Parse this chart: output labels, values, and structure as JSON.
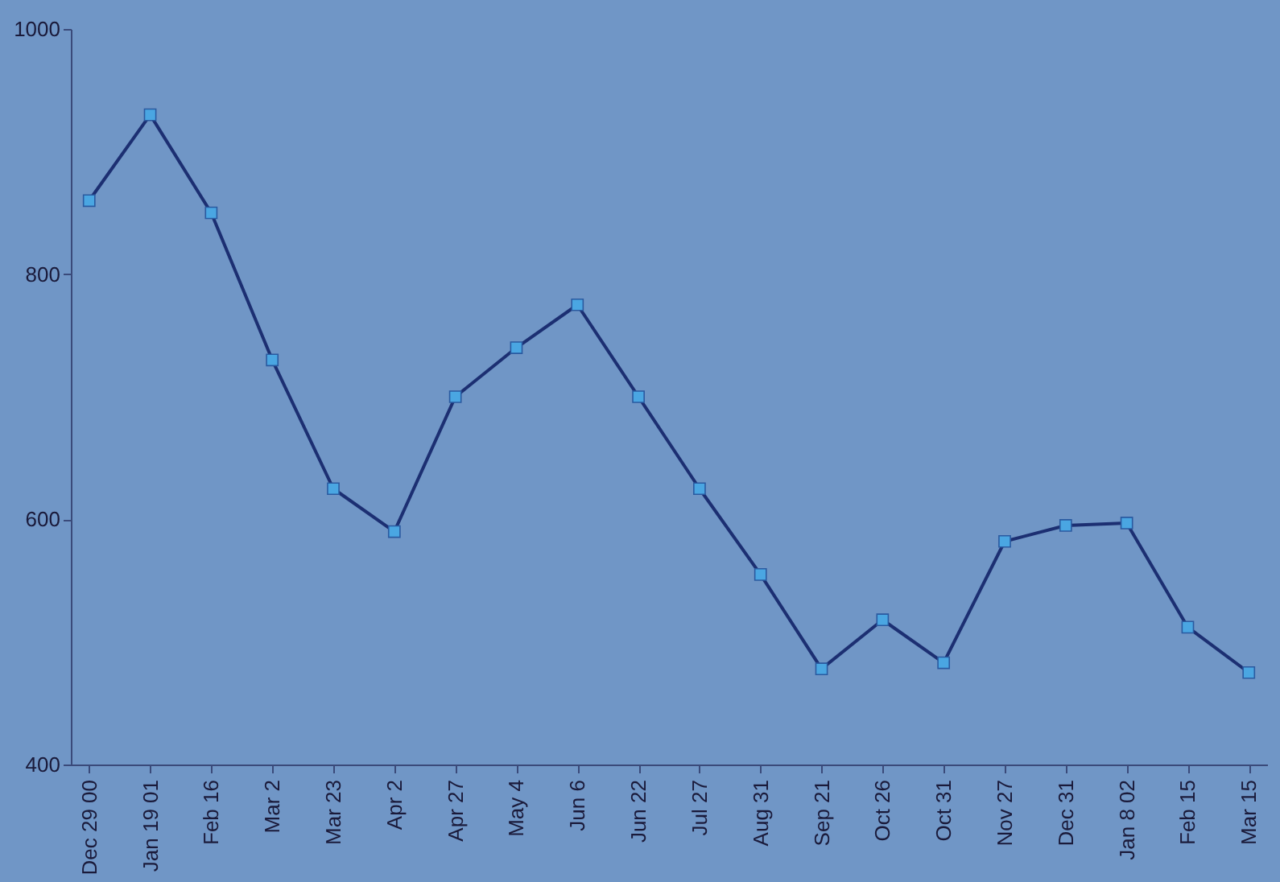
{
  "chart_data": {
    "type": "line",
    "categories": [
      "Dec 29 00",
      "Jan 19 01",
      "Feb 16",
      "Mar 2",
      "Mar 23",
      "Apr 2",
      "Apr 27",
      "May 4",
      "Jun 6",
      "Jun 22",
      "Jul 27",
      "Aug 31",
      "Sep 21",
      "Oct 26",
      "Oct 31",
      "Nov 27",
      "Dec 31",
      "Jan 8 02",
      "Feb 15",
      "Mar 15"
    ],
    "series": [
      {
        "color": "#1c2f72",
        "values": [
          860,
          930,
          850,
          730,
          625,
          590,
          700,
          740,
          775,
          700,
          625,
          555,
          478,
          518,
          483,
          582,
          595,
          597,
          512,
          475
        ]
      }
    ],
    "ylim": [
      400,
      1000
    ],
    "yticks": [
      400,
      600,
      800,
      1000
    ],
    "grid": false,
    "legend": false,
    "marker": "square",
    "line_style": "solid"
  }
}
